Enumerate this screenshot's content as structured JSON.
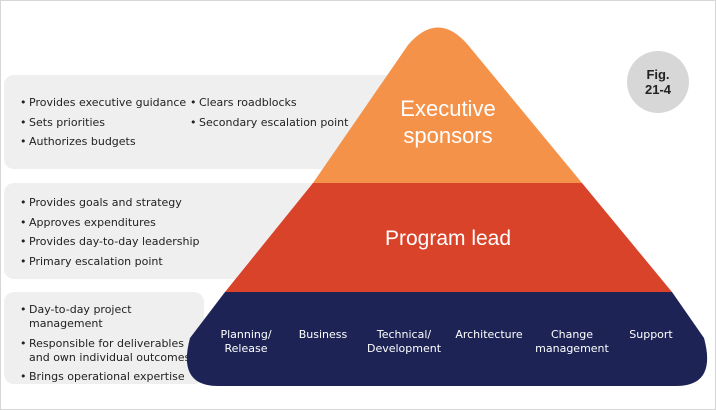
{
  "badge": {
    "line1": "Fig.",
    "line2": "21-4"
  },
  "tiers": {
    "executive": {
      "title_line1": "Executive",
      "title_line2": "sponsors",
      "color": "#f4924a",
      "bullets_left": [
        "Provides executive guidance",
        "Sets priorities",
        "Authorizes budgets"
      ],
      "bullets_right": [
        "Clears roadblocks",
        "Secondary escalation point"
      ]
    },
    "program": {
      "title": "Program lead",
      "color": "#d9432a",
      "bullets": [
        "Provides goals and strategy",
        "Approves expenditures",
        "Provides day-to-day leadership",
        "Primary escalation point"
      ]
    },
    "base": {
      "color": "#1d2455",
      "bullets": [
        "Day-to-day project management",
        "Responsible for deliverables and own individual outcomes",
        "Brings operational expertise"
      ],
      "functions": [
        {
          "line1": "Planning/",
          "line2": "Release"
        },
        {
          "line1": "Business",
          "line2": ""
        },
        {
          "line1": "Technical/",
          "line2": "Development"
        },
        {
          "line1": "Architecture",
          "line2": ""
        },
        {
          "line1": "Change",
          "line2": "management"
        },
        {
          "line1": "Support",
          "line2": ""
        }
      ]
    }
  },
  "colors": {
    "panel": "#efefef",
    "badge": "#d7d7d7"
  }
}
